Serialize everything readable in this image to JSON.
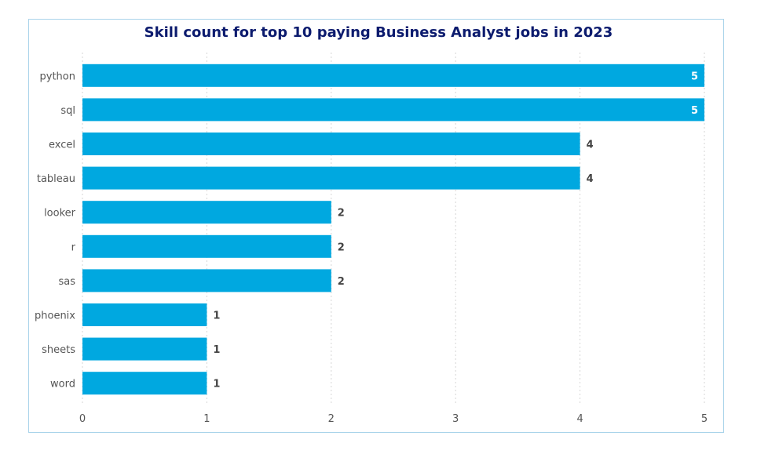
{
  "chart_data": {
    "type": "bar",
    "orientation": "horizontal",
    "title": "Skill count for top 10 paying Business Analyst jobs in 2023",
    "categories": [
      "python",
      "sql",
      "excel",
      "tableau",
      "looker",
      "r",
      "sas",
      "phoenix",
      "sheets",
      "word"
    ],
    "values": [
      5,
      5,
      4,
      4,
      2,
      2,
      2,
      1,
      1,
      1
    ],
    "xlim": [
      0,
      5
    ],
    "xticks": [
      0,
      1,
      2,
      3,
      4,
      5
    ],
    "xlabel": "",
    "ylabel": "",
    "grid": "vertical dotted",
    "bar_color": "#00a8e0",
    "data_labels": true
  }
}
